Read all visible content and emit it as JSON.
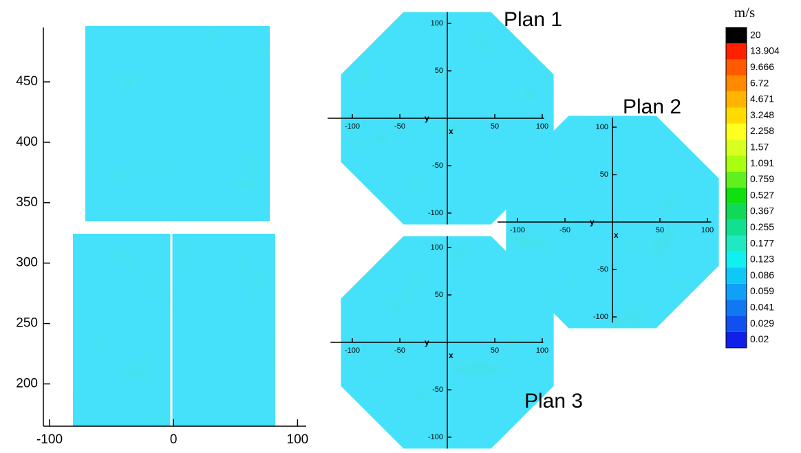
{
  "chart_data": [
    {
      "type": "contour",
      "xlim": [
        -105,
        107
      ],
      "ylim": [
        165,
        495
      ],
      "xticks": [
        -100,
        0,
        100
      ],
      "yticks": [
        200,
        250,
        300,
        350,
        400,
        450
      ]
    },
    {
      "type": "plan",
      "title": "Plan 1",
      "xlabel": "x",
      "ylabel": "y",
      "xlim": [
        -126,
        102
      ],
      "ylim": [
        -112,
        112
      ],
      "xticks": [
        -100,
        -50,
        50,
        100
      ],
      "yticks": [
        -100,
        -50,
        50,
        100
      ]
    },
    {
      "type": "plan",
      "title": "Plan 2",
      "xlabel": "x",
      "ylabel": "y",
      "xlim": [
        -121,
        104
      ],
      "ylim": [
        -106,
        110
      ],
      "xticks": [
        -100,
        -50,
        50,
        100
      ],
      "yticks": [
        -100,
        -50,
        50,
        100
      ]
    },
    {
      "type": "plan",
      "title": "Plan 3",
      "xlabel": "x",
      "ylabel": "y",
      "xlim": [
        -123,
        101
      ],
      "ylim": [
        -112,
        112
      ],
      "xticks": [
        -100,
        -50,
        50,
        100
      ],
      "yticks": [
        -100,
        -50,
        50,
        100
      ]
    },
    {
      "type": "colorbar",
      "title": "m/s",
      "levels": [
        20,
        13.904,
        9.666,
        6.72,
        4.671,
        3.248,
        2.258,
        1.57,
        1.091,
        0.759,
        0.527,
        0.367,
        0.255,
        0.177,
        0.123,
        0.086,
        0.059,
        0.041,
        0.029,
        0.02
      ],
      "colors": [
        "#000000",
        "#ff2000",
        "#ff5a00",
        "#ff8a00",
        "#ffb400",
        "#ffdc00",
        "#ffff20",
        "#d8ff20",
        "#a8ff10",
        "#60f020",
        "#10e010",
        "#10d858",
        "#10e090",
        "#20e8c0",
        "#10f0f0",
        "#10c8f8",
        "#10a0f8",
        "#1078f0",
        "#1050f0",
        "#1020e8"
      ]
    }
  ]
}
